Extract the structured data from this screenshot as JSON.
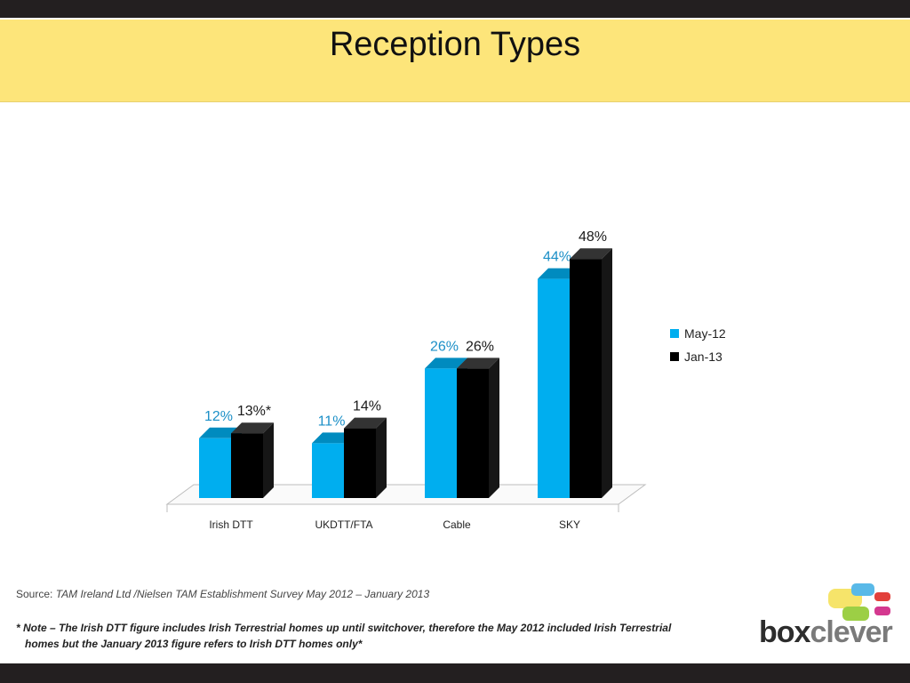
{
  "slide": {
    "title": "Reception Types",
    "source_label": "Source:",
    "source_text": "TAM Ireland Ltd /Nielsen TAM Establishment Survey May 2012 – January 2013",
    "note_line1": "* Note – The Irish DTT figure includes Irish Terrestrial homes up until switchover, therefore the May 2012 included Irish Terrestrial",
    "note_line2": "homes but the January 2013 figure refers to Irish DTT homes only*",
    "logo_text_dark": "box",
    "logo_text_light": "clever"
  },
  "chart_data": {
    "type": "bar",
    "categories": [
      "Irish DTT",
      "UKDTT/FTA",
      "Cable",
      "SKY"
    ],
    "series": [
      {
        "name": "May-12",
        "values": [
          12,
          11,
          26,
          44
        ],
        "labels": [
          "12%",
          "11%",
          "26%",
          "44%"
        ],
        "color": "#00aeef",
        "label_color": "#1b8fc7"
      },
      {
        "name": "Jan-13",
        "values": [
          13,
          14,
          26,
          48
        ],
        "labels": [
          "13%*",
          "14%",
          "26%",
          "48%"
        ],
        "color": "#000000",
        "label_color": "#1a1a1a"
      }
    ],
    "ylim": [
      0,
      50
    ],
    "grid": false,
    "legend": "right",
    "colors": {
      "may": "#00aeef",
      "jan": "#000000",
      "title_band": "#fde57a"
    }
  }
}
